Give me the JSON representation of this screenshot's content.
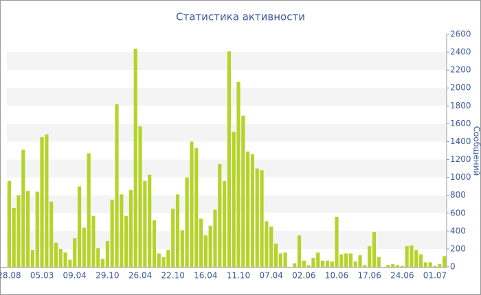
{
  "chart_data": {
    "type": "bar",
    "title": "Статистика активности",
    "y_label": "Сообщений",
    "categories": [
      "28.08",
      null,
      null,
      null,
      null,
      null,
      null,
      "05.03",
      null,
      null,
      null,
      null,
      null,
      null,
      "09.04",
      null,
      null,
      null,
      null,
      null,
      null,
      "29.10",
      null,
      null,
      null,
      null,
      null,
      null,
      "26.04",
      null,
      null,
      null,
      null,
      null,
      null,
      "22.10",
      null,
      null,
      null,
      null,
      null,
      null,
      "16.04",
      null,
      null,
      null,
      null,
      null,
      null,
      "11.10",
      null,
      null,
      null,
      null,
      null,
      null,
      "07.04",
      null,
      null,
      null,
      null,
      null,
      null,
      "02.06",
      null,
      null,
      null,
      null,
      null,
      null,
      "10.06",
      null,
      null,
      null,
      null,
      null,
      null,
      "17.06",
      null,
      null,
      null,
      null,
      null,
      null,
      "24.06",
      null,
      null,
      null,
      null,
      null,
      null,
      "01.07",
      null,
      null
    ],
    "values": [
      960,
      660,
      800,
      1310,
      850,
      190,
      840,
      1450,
      1480,
      730,
      270,
      200,
      160,
      80,
      320,
      900,
      440,
      1270,
      570,
      210,
      90,
      290,
      750,
      1820,
      810,
      570,
      860,
      2440,
      1570,
      960,
      1030,
      520,
      150,
      110,
      190,
      650,
      810,
      410,
      1000,
      1400,
      1330,
      540,
      350,
      460,
      640,
      1150,
      960,
      2410,
      1510,
      2070,
      1690,
      1290,
      1260,
      1100,
      1080,
      510,
      450,
      260,
      150,
      160,
      0,
      40,
      350,
      70,
      20,
      100,
      160,
      70,
      70,
      60,
      560,
      140,
      150,
      150,
      60,
      130,
      20,
      230,
      390,
      110,
      0,
      20,
      30,
      20,
      10,
      230,
      240,
      190,
      140,
      50,
      50,
      10,
      30,
      120
    ],
    "color": "#b5d32b",
    "ylim": [
      0,
      2600
    ],
    "yticks": [
      0,
      200,
      400,
      600,
      800,
      1000,
      1200,
      1400,
      1600,
      1800,
      2000,
      2200,
      2400,
      2600
    ],
    "grid": true
  }
}
